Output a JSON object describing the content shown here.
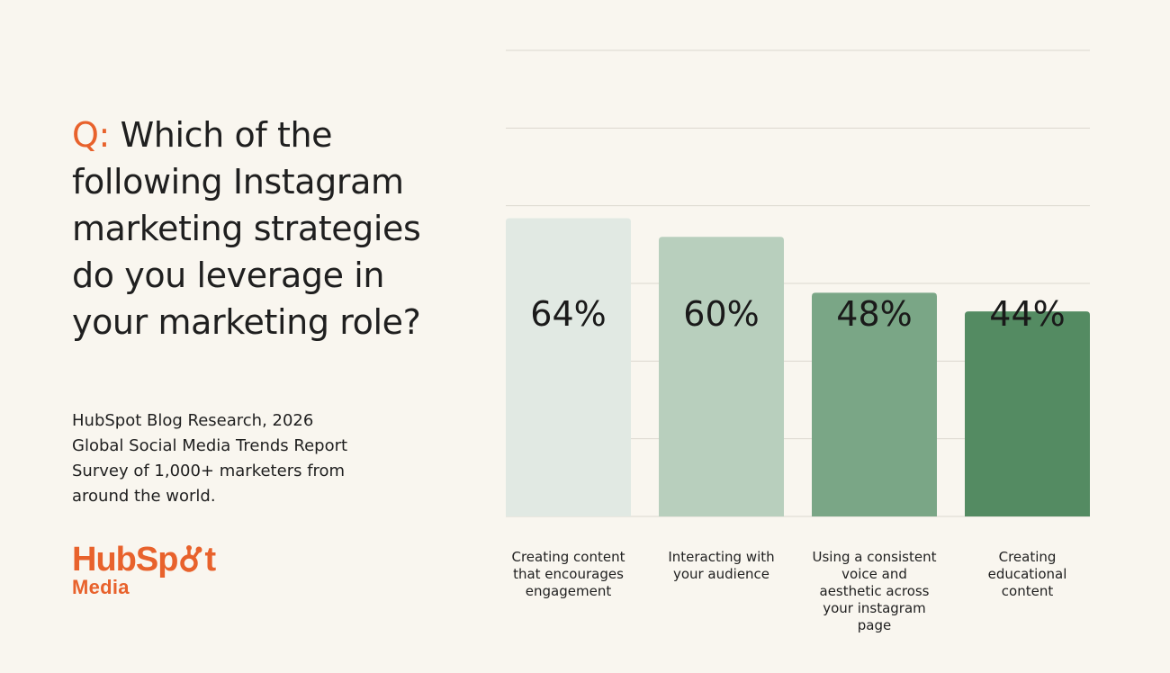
{
  "question": {
    "prefix": "Q:",
    "text": "Which of the following Instagram marketing strategies do you leverage in your marketing role?"
  },
  "source": {
    "lines": [
      "HubSpot Blog Research, 2026",
      "Global Social Media Trends Report",
      "Survey of 1,000+ marketers from",
      "around the world."
    ]
  },
  "logo": {
    "word_a": "HubSp",
    "word_b": "t",
    "sub": "Media"
  },
  "colors": {
    "accent": "#e8622c",
    "bars": [
      "#e1e9e3",
      "#b8cfbd",
      "#7aa686",
      "#548b62"
    ]
  },
  "chart_data": {
    "type": "bar",
    "categories": [
      "Creating content that encourages engagement",
      "Interacting with your audience",
      "Using a consistent voice and aesthetic across your instagram page",
      "Creating educational content"
    ],
    "values": [
      64,
      60,
      48,
      44
    ],
    "value_labels": [
      "64%",
      "60%",
      "48%",
      "44%"
    ],
    "category_lines": [
      [
        "Creating content",
        "that encourages",
        "engagement"
      ],
      [
        "Interacting with",
        "your audience"
      ],
      [
        "Using a consistent",
        "voice and",
        "aesthetic across",
        "your instagram",
        "page"
      ],
      [
        "Creating",
        "educational",
        "content"
      ]
    ],
    "ylim": [
      0,
      100
    ],
    "grid": true,
    "title": "",
    "xlabel": "",
    "ylabel": ""
  }
}
